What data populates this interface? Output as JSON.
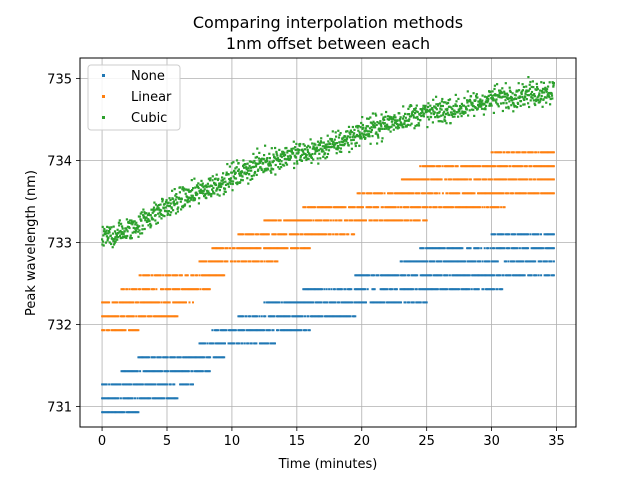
{
  "chart_data": {
    "type": "scatter",
    "title": "Comparing interpolation methods",
    "subtitle": "1nm offset between each",
    "xlabel": "Time (minutes)",
    "ylabel": "Peak wavelength (nm)",
    "xlim": [
      -1.7,
      36.5
    ],
    "ylim": [
      730.75,
      735.25
    ],
    "xticks": [
      0,
      5,
      10,
      15,
      20,
      25,
      30,
      35
    ],
    "yticks": [
      731,
      732,
      733,
      734,
      735
    ],
    "grid": true,
    "legend_position": "top-left",
    "series": [
      {
        "name": "None",
        "color": "#1f77b4",
        "x_range": [
          0,
          34.8
        ],
        "levels": [
          {
            "y": 730.93,
            "x": [
              0,
              2.8
            ]
          },
          {
            "y": 731.1,
            "x": [
              0,
              5.8
            ]
          },
          {
            "y": 731.27,
            "x": [
              0,
              7.0
            ]
          },
          {
            "y": 731.43,
            "x": [
              1.5,
              8.3
            ]
          },
          {
            "y": 731.6,
            "x": [
              2.8,
              9.5
            ]
          },
          {
            "y": 731.77,
            "x": [
              7.5,
              13.5
            ]
          },
          {
            "y": 731.93,
            "x": [
              8.5,
              16.0
            ]
          },
          {
            "y": 732.1,
            "x": [
              10.5,
              19.5
            ]
          },
          {
            "y": 732.27,
            "x": [
              12.5,
              25.0
            ]
          },
          {
            "y": 732.43,
            "x": [
              15.5,
              31.0
            ]
          },
          {
            "y": 732.6,
            "x": [
              19.5,
              34.8
            ]
          },
          {
            "y": 732.77,
            "x": [
              23.0,
              34.8
            ]
          },
          {
            "y": 732.93,
            "x": [
              24.5,
              34.8
            ]
          },
          {
            "y": 733.1,
            "x": [
              30.0,
              34.8
            ]
          }
        ]
      },
      {
        "name": "Linear",
        "color": "#ff7f0e",
        "x_range": [
          0,
          34.8
        ],
        "levels": [
          {
            "y": 731.93,
            "x": [
              0,
              2.8
            ]
          },
          {
            "y": 732.1,
            "x": [
              0,
              5.8
            ]
          },
          {
            "y": 732.27,
            "x": [
              0,
              7.0
            ]
          },
          {
            "y": 732.43,
            "x": [
              1.5,
              8.3
            ]
          },
          {
            "y": 732.6,
            "x": [
              2.8,
              9.5
            ]
          },
          {
            "y": 732.77,
            "x": [
              7.5,
              13.5
            ]
          },
          {
            "y": 732.93,
            "x": [
              8.5,
              16.0
            ]
          },
          {
            "y": 733.1,
            "x": [
              10.5,
              19.5
            ]
          },
          {
            "y": 733.27,
            "x": [
              12.5,
              25.0
            ]
          },
          {
            "y": 733.43,
            "x": [
              15.5,
              31.0
            ]
          },
          {
            "y": 733.6,
            "x": [
              19.5,
              34.8
            ]
          },
          {
            "y": 733.77,
            "x": [
              23.0,
              34.8
            ]
          },
          {
            "y": 733.93,
            "x": [
              24.5,
              34.8
            ]
          },
          {
            "y": 734.1,
            "x": [
              30.0,
              34.8
            ]
          }
        ]
      },
      {
        "name": "Cubic",
        "color": "#2ca02c",
        "trend_x": [
          0,
          2,
          4,
          6,
          8,
          10,
          12,
          14,
          16,
          18,
          20,
          22,
          24,
          26,
          28,
          30,
          32,
          34.8
        ],
        "trend_y": [
          733.05,
          733.15,
          733.35,
          733.52,
          733.65,
          733.8,
          733.95,
          734.05,
          734.1,
          734.2,
          734.35,
          734.45,
          734.55,
          734.6,
          734.65,
          734.75,
          734.8,
          734.85
        ],
        "spread": 0.1
      }
    ]
  }
}
